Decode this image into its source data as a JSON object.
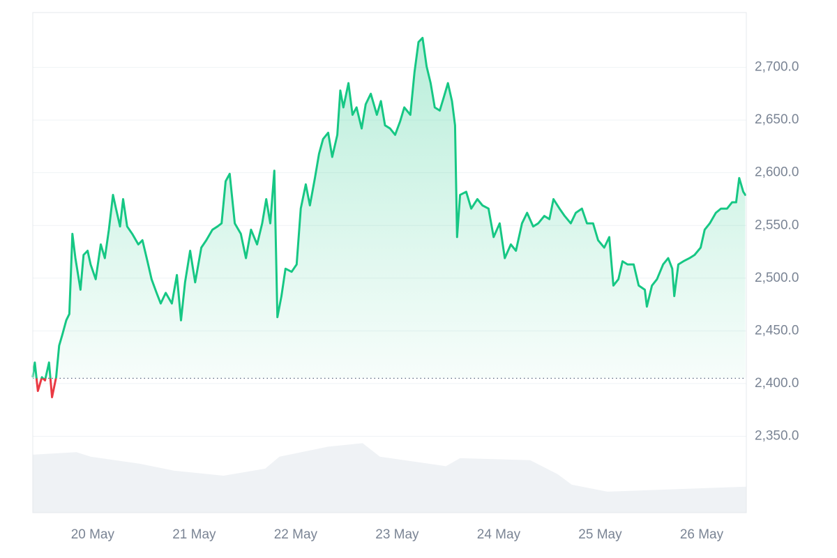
{
  "chart_data": {
    "type": "line",
    "x": [
      19.41,
      19.43,
      19.46,
      19.5,
      19.53,
      19.57,
      19.6,
      19.64,
      19.67,
      19.7,
      19.74,
      19.77,
      19.8,
      19.83,
      19.88,
      19.91,
      19.95,
      19.98,
      20.03,
      20.08,
      20.12,
      20.16,
      20.2,
      20.23,
      20.27,
      20.3,
      20.34,
      20.39,
      20.45,
      20.49,
      20.54,
      20.58,
      20.63,
      20.67,
      20.72,
      20.78,
      20.83,
      20.87,
      20.91,
      20.96,
      21.01,
      21.07,
      21.12,
      21.18,
      21.23,
      21.27,
      21.31,
      21.35,
      21.4,
      21.46,
      21.51,
      21.56,
      21.62,
      21.67,
      21.71,
      21.75,
      21.79,
      21.82,
      21.86,
      21.9,
      21.96,
      22.01,
      22.05,
      22.1,
      22.14,
      22.19,
      22.23,
      22.27,
      22.32,
      22.36,
      22.41,
      22.44,
      22.47,
      22.52,
      22.56,
      22.6,
      22.65,
      22.69,
      22.74,
      22.8,
      22.84,
      22.88,
      22.93,
      22.98,
      23.03,
      23.07,
      23.13,
      23.17,
      23.21,
      23.25,
      23.29,
      23.33,
      23.37,
      23.42,
      23.46,
      23.5,
      23.54,
      23.57,
      23.59,
      23.62,
      23.68,
      23.73,
      23.79,
      23.84,
      23.9,
      23.95,
      24.01,
      24.06,
      24.12,
      24.17,
      24.23,
      24.28,
      24.34,
      24.39,
      24.45,
      24.5,
      24.54,
      24.6,
      24.65,
      24.71,
      24.76,
      24.82,
      24.87,
      24.93,
      24.98,
      25.04,
      25.09,
      25.13,
      25.18,
      25.22,
      25.27,
      25.33,
      25.38,
      25.44,
      25.46,
      25.51,
      25.56,
      25.62,
      25.67,
      25.71,
      25.73,
      25.77,
      25.82,
      25.88,
      25.93,
      25.99,
      26.03,
      26.08,
      26.14,
      26.19,
      26.25,
      26.3,
      26.34,
      26.37,
      26.41,
      26.43
    ],
    "series": [
      {
        "color": "#16c784",
        "below_color": "#ea3943",
        "values": [
          2406.6,
          2420,
          2393,
          2406,
          2403,
          2420,
          2387,
          2406,
          2436,
          2446,
          2460,
          2466,
          2542,
          2519,
          2489,
          2522,
          2526,
          2513,
          2499,
          2532,
          2519,
          2546,
          2579,
          2566,
          2549,
          2575,
          2549,
          2542,
          2532,
          2536,
          2516,
          2499,
          2486,
          2476,
          2486,
          2476,
          2503,
          2460,
          2496,
          2526,
          2496,
          2529,
          2536,
          2546,
          2549,
          2552,
          2592,
          2599,
          2552,
          2542,
          2519,
          2546,
          2532,
          2552,
          2575,
          2552,
          2602,
          2463,
          2483,
          2509,
          2506,
          2513,
          2566,
          2589,
          2569,
          2595,
          2618,
          2632,
          2638,
          2615,
          2636,
          2678,
          2662,
          2685,
          2655,
          2662,
          2642,
          2665,
          2675,
          2655,
          2668,
          2645,
          2642,
          2636,
          2649,
          2662,
          2655,
          2695,
          2724,
          2728,
          2701,
          2685,
          2662,
          2659,
          2672,
          2685,
          2668,
          2645,
          2539,
          2579,
          2582,
          2566,
          2575,
          2569,
          2566,
          2539,
          2552,
          2519,
          2532,
          2526,
          2552,
          2562,
          2549,
          2552,
          2559,
          2556,
          2575,
          2566,
          2559,
          2552,
          2562,
          2566,
          2552,
          2552,
          2536,
          2529,
          2539,
          2493,
          2499,
          2516,
          2513,
          2513,
          2493,
          2489,
          2473,
          2493,
          2499,
          2513,
          2519,
          2509,
          2483,
          2513,
          2516,
          2519,
          2522,
          2529,
          2546,
          2552,
          2562,
          2566,
          2566,
          2572,
          2572,
          2595,
          2582,
          2579
        ]
      }
    ],
    "baseline": 2405,
    "volume": {
      "axis": "y2",
      "color": "#eff2f5",
      "x": [
        19.41,
        19.84,
        19.98,
        20.46,
        20.8,
        21.29,
        21.7,
        21.84,
        22.32,
        22.66,
        22.83,
        23.48,
        23.62,
        24.31,
        24.58,
        24.72,
        25.07,
        25.62,
        26.44
      ],
      "values": [
        11.6,
        12.1,
        11.2,
        9.8,
        8.4,
        7.4,
        8.8,
        11.2,
        13.2,
        13.9,
        11.2,
        9.3,
        10.9,
        10.5,
        7.7,
        5.6,
        4.2,
        4.6,
        5.2
      ]
    },
    "xlim": [
      19.41,
      26.44
    ],
    "xticks": [
      {
        "value": 20,
        "label": "20 May"
      },
      {
        "value": 21,
        "label": "21 May"
      },
      {
        "value": 22,
        "label": "22 May"
      },
      {
        "value": 23,
        "label": "23 May"
      },
      {
        "value": 24,
        "label": "24 May"
      },
      {
        "value": 25,
        "label": "25 May"
      },
      {
        "value": 26,
        "label": "26 May"
      }
    ],
    "ylim": [
      2277.5,
      2752
    ],
    "yticks": [
      {
        "value": 2350,
        "label": "2,350.0"
      },
      {
        "value": 2400,
        "label": "2,400.0"
      },
      {
        "value": 2450,
        "label": "2,450.0"
      },
      {
        "value": 2500,
        "label": "2,500.0"
      },
      {
        "value": 2550,
        "label": "2,550.0"
      },
      {
        "value": 2600,
        "label": "2,600.0"
      },
      {
        "value": 2650,
        "label": "2,650.0"
      },
      {
        "value": 2700,
        "label": "2,700.0"
      }
    ],
    "y2lim": [
      0,
      100
    ],
    "grid": true
  }
}
